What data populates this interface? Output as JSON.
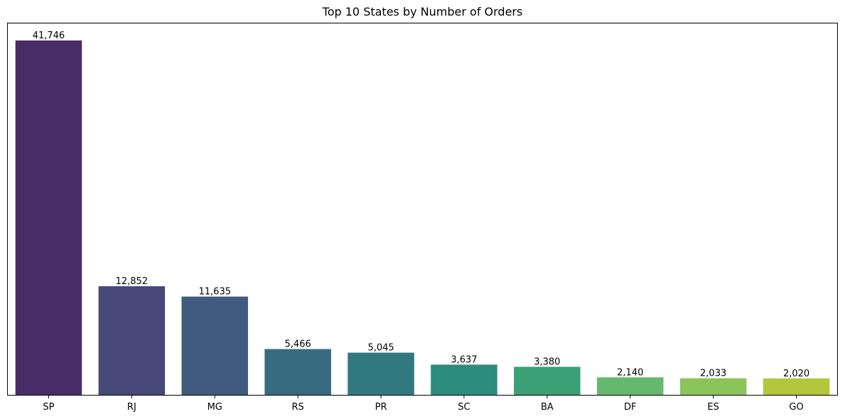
{
  "chart_data": {
    "type": "bar",
    "title": "Top 10 States by Number of Orders",
    "categories": [
      "SP",
      "RJ",
      "MG",
      "RS",
      "PR",
      "SC",
      "BA",
      "DF",
      "ES",
      "GO"
    ],
    "values": [
      41746,
      12852,
      11635,
      5466,
      5045,
      3637,
      3380,
      2140,
      2033,
      2020
    ],
    "data_labels": [
      "41,746",
      "12,852",
      "11,635",
      "5,466",
      "5,045",
      "3,637",
      "3,380",
      "2,140",
      "2,033",
      "2,020"
    ],
    "colors": [
      "#482c66",
      "#474779",
      "#415b7f",
      "#376b80",
      "#31797f",
      "#2c8c7e",
      "#3ba076",
      "#64b96e",
      "#8bc45b",
      "#b2c73b"
    ],
    "xlabel": "",
    "ylabel": "",
    "ylim": [
      0,
      43833
    ],
    "grid": false,
    "legend": "none"
  }
}
